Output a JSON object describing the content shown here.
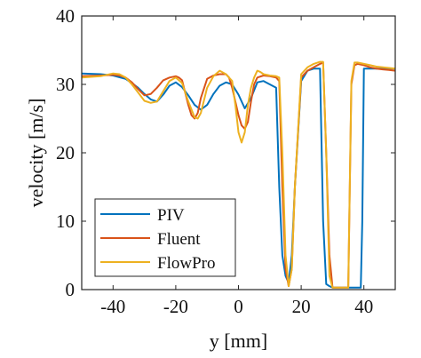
{
  "chart_data": {
    "type": "line",
    "xlabel": "y [mm]",
    "ylabel": "velocity [m/s]",
    "xlim": [
      -50,
      50
    ],
    "ylim": [
      0,
      40
    ],
    "xticks": [
      -40,
      -20,
      0,
      20,
      40
    ],
    "yticks": [
      0,
      10,
      20,
      30,
      40
    ],
    "grid": false,
    "legend_position": "bottom-left",
    "series": [
      {
        "name": "PIV",
        "color": "#0072BD",
        "x": [
          -50,
          -44,
          -40,
          -36,
          -34,
          -32,
          -30,
          -28,
          -26,
          -24,
          -22,
          -20,
          -18,
          -16,
          -14,
          -12,
          -10,
          -8,
          -6,
          -4,
          -2,
          0,
          2,
          4,
          6,
          8,
          10,
          12,
          13,
          14,
          15,
          16,
          17,
          18,
          20,
          22,
          24,
          25,
          26,
          27,
          28,
          29,
          30,
          31,
          32,
          33,
          34,
          35,
          36,
          37,
          38,
          39,
          39.5,
          40,
          42,
          44,
          46,
          48,
          50
        ],
        "y": [
          31.6,
          31.5,
          31.3,
          30.8,
          30.2,
          29.5,
          28.6,
          27.8,
          27.5,
          28.5,
          29.8,
          30.3,
          29.6,
          28.4,
          27.0,
          26.3,
          27.0,
          28.6,
          29.8,
          30.3,
          30.0,
          28.5,
          26.5,
          28.0,
          30.3,
          30.5,
          30.0,
          29.5,
          15.0,
          5.0,
          2.0,
          1.0,
          5.0,
          15.0,
          30.5,
          32.0,
          32.3,
          32.3,
          32.3,
          10.0,
          0.8,
          0.5,
          0.3,
          0.3,
          0.3,
          0.3,
          0.3,
          0.3,
          0.3,
          0.3,
          0.3,
          0.3,
          10.0,
          32.3,
          32.3,
          32.3,
          32.3,
          32.3,
          32.3
        ]
      },
      {
        "name": "Fluent",
        "color": "#D95319",
        "x": [
          -50,
          -44,
          -40,
          -38,
          -36,
          -34,
          -32,
          -30,
          -28,
          -26,
          -24,
          -22,
          -20,
          -19,
          -18,
          -16,
          -15,
          -14,
          -13,
          -12,
          -10,
          -8,
          -6,
          -4,
          -3,
          -2,
          -1,
          0,
          1,
          2,
          3,
          4,
          5,
          6,
          8,
          10,
          12,
          13,
          14,
          15,
          16,
          17,
          18,
          20,
          22,
          24,
          26,
          27,
          28,
          29,
          30,
          31,
          32,
          33,
          34,
          35,
          36,
          37,
          38,
          40,
          42,
          44,
          46,
          48,
          50
        ],
        "y": [
          31.2,
          31.3,
          31.4,
          31.3,
          31.0,
          30.3,
          29.3,
          28.4,
          28.6,
          29.5,
          30.6,
          31.0,
          31.2,
          31.0,
          30.6,
          27.0,
          25.5,
          25.0,
          25.8,
          28.0,
          30.8,
          31.3,
          31.5,
          31.5,
          31.0,
          29.5,
          27.5,
          25.5,
          24.0,
          23.5,
          24.5,
          27.5,
          30.0,
          31.0,
          31.3,
          31.2,
          31.0,
          30.5,
          15.0,
          3.0,
          0.5,
          3.0,
          15.0,
          31.0,
          32.0,
          32.5,
          33.0,
          33.2,
          20.0,
          5.0,
          0.3,
          0.3,
          0.3,
          0.3,
          0.3,
          0.3,
          30.0,
          32.8,
          33.0,
          32.8,
          32.5,
          32.3,
          32.2,
          32.1,
          32.0
        ]
      },
      {
        "name": "FlowPro",
        "color": "#EDB120",
        "x": [
          -50,
          -44,
          -40,
          -38,
          -36,
          -34,
          -32,
          -30,
          -28,
          -26,
          -24,
          -22,
          -20,
          -18,
          -16,
          -14,
          -13,
          -12,
          -10,
          -8,
          -6,
          -4,
          -2,
          -1,
          0,
          1,
          2,
          3,
          4,
          5,
          6,
          7,
          8,
          10,
          12,
          13,
          14,
          15,
          16,
          17,
          18,
          20,
          22,
          24,
          26,
          27,
          28,
          29,
          30,
          31,
          32,
          33,
          34,
          35,
          36,
          37,
          38,
          40,
          42,
          44,
          46,
          48,
          50
        ],
        "y": [
          31.0,
          31.2,
          31.6,
          31.5,
          31.0,
          30.0,
          28.8,
          27.6,
          27.3,
          27.5,
          29.0,
          30.5,
          31.0,
          30.2,
          27.5,
          25.2,
          25.0,
          25.8,
          29.5,
          31.2,
          32.0,
          31.5,
          30.5,
          27.0,
          23.0,
          21.5,
          23.0,
          27.0,
          29.5,
          31.0,
          32.0,
          31.8,
          31.5,
          31.3,
          31.2,
          31.0,
          20.0,
          5.0,
          0.5,
          3.0,
          15.0,
          31.5,
          32.5,
          33.0,
          33.3,
          33.3,
          20.0,
          2.0,
          0.3,
          0.3,
          0.3,
          0.3,
          0.3,
          0.3,
          30.5,
          33.2,
          33.2,
          33.0,
          32.8,
          32.6,
          32.5,
          32.4,
          32.3
        ]
      }
    ]
  }
}
